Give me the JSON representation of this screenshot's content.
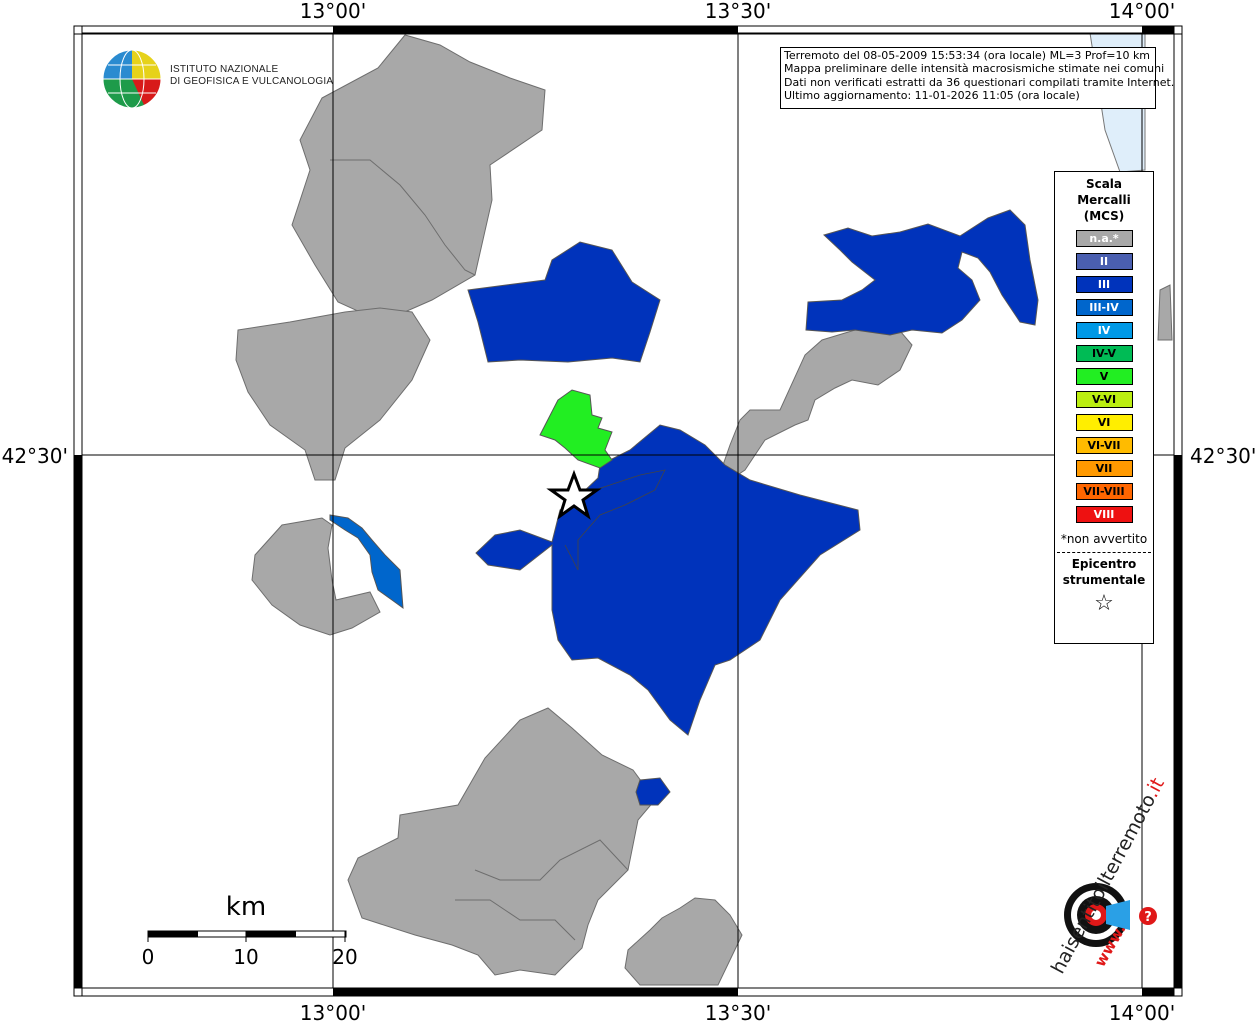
{
  "coordinates": {
    "lon_top": [
      "13°00'",
      "13°30'",
      "14°00'"
    ],
    "lon_bottom": [
      "13°00'",
      "13°30'",
      "14°00'"
    ],
    "lat_left": "42°30'",
    "lat_right": "42°30'"
  },
  "info": {
    "line1": "Terremoto del 08-05-2009 15:53:34 (ora locale) ML=3 Prof=10 km",
    "line2": "Mappa preliminare delle intensità macrosismiche stimate nei comuni",
    "line3": "Dati non verificati estratti da 36 questionari compilati tramite Internet.",
    "line4": "Ultimo aggiornamento: 11-01-2026 11:05 (ora locale)"
  },
  "logo": {
    "ingv_line1": "ISTITUTO NAZIONALE",
    "ingv_line2": "DI GEOFISICA E VULCANOLOGIA",
    "hsit_main": "haisentitoilterremoto",
    "hsit_suffix": ".it",
    "hsit_www": "www.",
    "hsit_q": "?"
  },
  "scale": {
    "unit": "km",
    "labels": [
      "0",
      "10",
      "20"
    ]
  },
  "legend": {
    "title_line1": "Scala",
    "title_line2": "Mercalli",
    "title_line3": "(MCS)",
    "items": [
      {
        "label": "n.a.*",
        "color": "#a8a8a8"
      },
      {
        "label": "II",
        "color": "#4a5fb0"
      },
      {
        "label": "III",
        "color": "#0033bb"
      },
      {
        "label": "III-IV",
        "color": "#0066cc"
      },
      {
        "label": "IV",
        "color": "#0099e6"
      },
      {
        "label": "IV-V",
        "color": "#00bb55"
      },
      {
        "label": "V",
        "color": "#22ee22"
      },
      {
        "label": "V-VI",
        "color": "#bbee11"
      },
      {
        "label": "VI",
        "color": "#ffee00"
      },
      {
        "label": "VI-VII",
        "color": "#ffbb00"
      },
      {
        "label": "VII",
        "color": "#ff9900"
      },
      {
        "label": "VII-VIII",
        "color": "#ff6600"
      },
      {
        "label": "VIII",
        "color": "#ee1111"
      }
    ],
    "note": "*non avvertito",
    "epicentro_line1": "Epicentro",
    "epicentro_line2": "strumentale",
    "star": "☆"
  }
}
